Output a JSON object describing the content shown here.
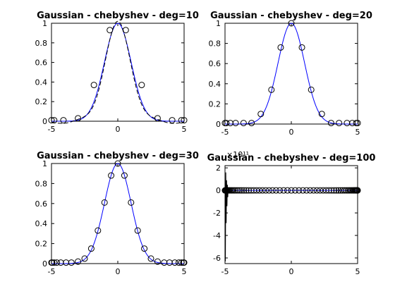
{
  "chart_data": [
    {
      "type": "line",
      "title": "Gaussian - chebyshev - deg=10",
      "degree": 10,
      "xlim": [
        -5,
        5
      ],
      "ylim": [
        0,
        1
      ],
      "x_ticks": [
        -5,
        0,
        5
      ],
      "x_tick_labels": [
        "-5",
        "0",
        "5"
      ],
      "y_ticks": [
        0,
        0.2,
        0.4,
        0.6,
        0.8,
        1
      ],
      "y_tick_labels": [
        "0",
        "0.2",
        "0.4",
        "0.6",
        "0.8",
        "1"
      ],
      "y_exponent_label": "",
      "series": [
        {
          "style": "blue-solid"
        },
        {
          "style": "black-dashed"
        },
        {
          "style": "circles",
          "x": [
            -5,
            -4.8,
            -4.1,
            -3.0,
            -1.8,
            -0.6,
            0.6,
            1.8,
            3.0,
            4.1,
            4.8,
            5
          ],
          "y": [
            0.01,
            0.01,
            0.01,
            0.03,
            0.37,
            0.93,
            0.93,
            0.37,
            0.03,
            0.01,
            0.01,
            0.01
          ]
        }
      ]
    },
    {
      "type": "line",
      "title": "Gaussian - chebyshev - deg=20",
      "degree": 20,
      "xlim": [
        -5,
        5
      ],
      "ylim": [
        0,
        1
      ],
      "x_ticks": [
        -5,
        0,
        5
      ],
      "x_tick_labels": [
        "-5",
        "0",
        "5"
      ],
      "y_ticks": [
        0,
        0.2,
        0.4,
        0.6,
        0.8,
        1
      ],
      "y_tick_labels": [
        "0",
        "0.2",
        "0.4",
        "0.6",
        "0.8",
        "1"
      ],
      "y_exponent_label": "",
      "series": [
        {
          "style": "blue-solid"
        },
        {
          "style": "circles",
          "x": [
            -5,
            -4.9,
            -4.6,
            -4.2,
            -3.6,
            -3.0,
            -2.3,
            -1.5,
            -0.8,
            0,
            0.8,
            1.5,
            2.3,
            3.0,
            3.6,
            4.2,
            4.6,
            4.9,
            5
          ],
          "y": [
            0.01,
            0.01,
            0.01,
            0.01,
            0.01,
            0.01,
            0.1,
            0.34,
            0.76,
            1.0,
            0.76,
            0.34,
            0.1,
            0.01,
            0.01,
            0.01,
            0.01,
            0.01,
            0.01
          ]
        }
      ]
    },
    {
      "type": "line",
      "title": "Gaussian - chebyshev - deg=30",
      "degree": 30,
      "xlim": [
        -5,
        5
      ],
      "ylim": [
        0,
        1
      ],
      "x_ticks": [
        -5,
        0,
        5
      ],
      "x_tick_labels": [
        "-5",
        "0",
        "5"
      ],
      "y_ticks": [
        0,
        0.2,
        0.4,
        0.6,
        0.8,
        1
      ],
      "y_tick_labels": [
        "0",
        "0.2",
        "0.4",
        "0.6",
        "0.8",
        "1"
      ],
      "y_exponent_label": "",
      "series": [
        {
          "style": "blue-solid"
        },
        {
          "style": "circles",
          "x": [
            -5,
            -4.95,
            -4.8,
            -4.6,
            -4.3,
            -3.9,
            -3.5,
            -3.0,
            -2.5,
            -2.0,
            -1.5,
            -1.0,
            -0.5,
            0,
            0.5,
            1.0,
            1.5,
            2.0,
            2.5,
            3.0,
            3.5,
            3.9,
            4.3,
            4.6,
            4.8,
            4.95,
            5
          ],
          "y": [
            0.01,
            0.01,
            0.01,
            0.01,
            0.01,
            0.01,
            0.01,
            0.02,
            0.05,
            0.15,
            0.33,
            0.61,
            0.88,
            1.0,
            0.88,
            0.61,
            0.33,
            0.15,
            0.05,
            0.02,
            0.01,
            0.01,
            0.01,
            0.01,
            0.01,
            0.01,
            0.01
          ]
        }
      ]
    },
    {
      "type": "line",
      "title": "Gaussian - chebyshev - deg=100",
      "degree": 100,
      "xlim": [
        -5,
        5
      ],
      "ylim": [
        -6.5,
        2.2
      ],
      "x_ticks": [
        -5,
        0,
        5
      ],
      "x_tick_labels": [
        "-5",
        "0",
        "5"
      ],
      "y_ticks": [
        -6,
        -4,
        -2,
        0,
        2
      ],
      "y_tick_labels": [
        "-6",
        "-4",
        "-2",
        "0",
        "2"
      ],
      "y_exponent_label": "×10¹¹",
      "series": [
        {
          "style": "blue-solid"
        },
        {
          "style": "black-spike",
          "x": [
            -5.0,
            -4.97,
            -4.94,
            -4.91,
            -4.88,
            -4.85,
            -4.82,
            -4.79,
            -4.76,
            -4.73,
            -4.7,
            -4.6
          ],
          "y": [
            0,
            -6.3,
            1.6,
            -2.9,
            0.9,
            -1.4,
            0.5,
            -0.6,
            0.2,
            -0.2,
            0.1,
            0
          ]
        },
        {
          "style": "circles",
          "x": [
            -5,
            -4.98,
            -4.95,
            -4.92,
            -4.88,
            -4.83,
            -4.78,
            -4.72,
            -4.65,
            -4.57,
            -4.48,
            -4.38,
            -4.27,
            -4.15,
            -4.02,
            -3.88,
            -3.73,
            -3.57,
            -3.4,
            -3.22,
            -3.03,
            -2.83,
            -2.62,
            -2.4,
            -2.17,
            -1.93,
            -1.68,
            -1.42,
            -1.15,
            -0.87,
            -0.58,
            -0.29,
            0,
            0.29,
            0.58,
            0.87,
            1.15,
            1.42,
            1.68,
            1.93,
            2.17,
            2.4,
            2.62,
            2.83,
            3.03,
            3.22,
            3.4,
            3.57,
            3.73,
            3.88,
            4.02,
            4.15,
            4.27,
            4.38,
            4.48,
            4.57,
            4.65,
            4.72,
            4.78,
            4.83,
            4.88,
            4.92,
            4.95,
            4.98,
            5
          ],
          "y": [
            0,
            0,
            0,
            0,
            0,
            0,
            0,
            0,
            0,
            0,
            0,
            0,
            0,
            0,
            0,
            0,
            0,
            0,
            0,
            0,
            0,
            0,
            0,
            0,
            0,
            0,
            0,
            0,
            0,
            0,
            0,
            0,
            0,
            0,
            0,
            0,
            0,
            0,
            0,
            0,
            0,
            0,
            0,
            0,
            0,
            0,
            0,
            0,
            0,
            0,
            0,
            0,
            0,
            0,
            0,
            0,
            0,
            0,
            0,
            0,
            0,
            0,
            0,
            0,
            0
          ]
        }
      ]
    }
  ]
}
